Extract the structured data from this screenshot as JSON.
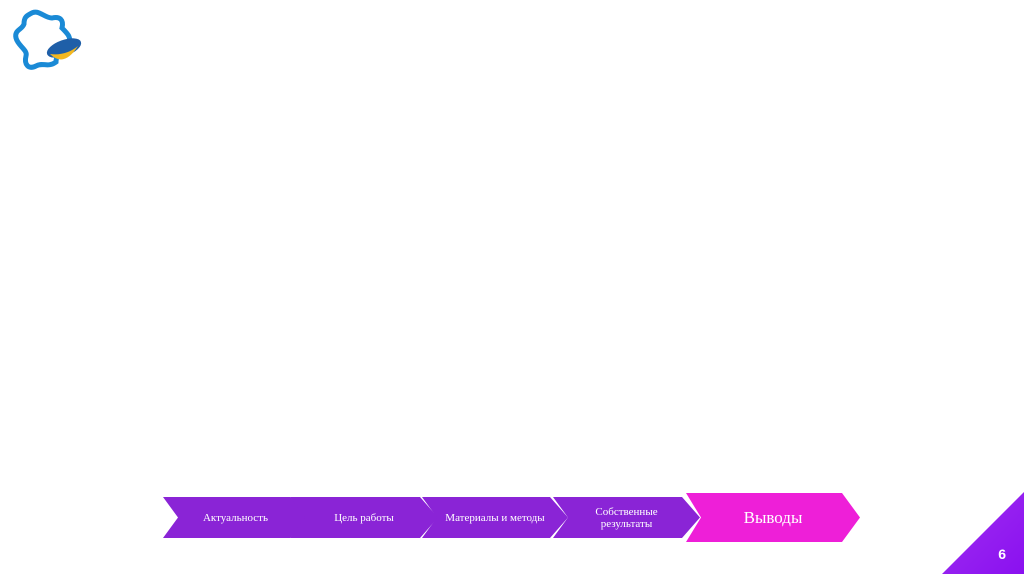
{
  "nav": {
    "steps": [
      {
        "label": "Актуальность"
      },
      {
        "label": "Цель работы"
      },
      {
        "label": "Материалы и методы"
      },
      {
        "label": "Собственные результаты"
      },
      {
        "label": "Выводы",
        "active": true
      }
    ]
  },
  "slide_number": "6",
  "colors": {
    "step": "#8a24d6",
    "active": "#ee1fd8",
    "corner": "#9020f0"
  }
}
